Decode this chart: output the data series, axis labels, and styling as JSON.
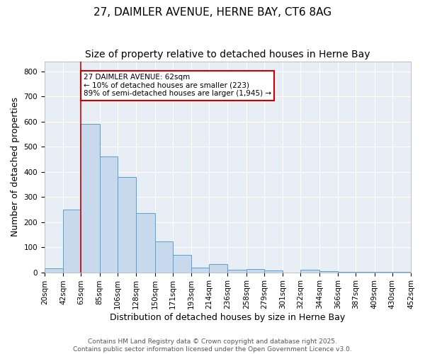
{
  "title1": "27, DAIMLER AVENUE, HERNE BAY, CT6 8AG",
  "title2": "Size of property relative to detached houses in Herne Bay",
  "xlabel": "Distribution of detached houses by size in Herne Bay",
  "ylabel": "Number of detached properties",
  "bin_edges": [
    20,
    42,
    63,
    85,
    106,
    128,
    150,
    171,
    193,
    214,
    236,
    258,
    279,
    301,
    322,
    344,
    366,
    387,
    409,
    430,
    452
  ],
  "bin_labels": [
    "20sqm",
    "42sqm",
    "63sqm",
    "85sqm",
    "106sqm",
    "128sqm",
    "150sqm",
    "171sqm",
    "193sqm",
    "214sqm",
    "236sqm",
    "258sqm",
    "279sqm",
    "301sqm",
    "322sqm",
    "344sqm",
    "366sqm",
    "387sqm",
    "409sqm",
    "430sqm",
    "452sqm"
  ],
  "values": [
    17,
    250,
    590,
    460,
    380,
    235,
    122,
    68,
    20,
    32,
    11,
    13,
    8,
    0,
    10,
    5,
    3,
    2,
    1,
    3,
    0
  ],
  "bar_color": "#c8d8ed",
  "bar_edge_color": "#5a9fd4",
  "property_line_x": 63,
  "property_line_color": "#cc0000",
  "annotation_text": "27 DAIMLER AVENUE: 62sqm\n← 10% of detached houses are smaller (223)\n89% of semi-detached houses are larger (1,945) →",
  "annotation_box_color": "white",
  "annotation_box_edge_color": "#cc0000",
  "ylim": [
    0,
    840
  ],
  "background_color": "#e8eef5",
  "grid_color": "#ffffff",
  "footer_text": "Contains HM Land Registry data © Crown copyright and database right 2025.\nContains public sector information licensed under the Open Government Licence v3.0.",
  "title_fontsize": 11,
  "subtitle_fontsize": 10,
  "label_fontsize": 9,
  "tick_fontsize": 7.5,
  "footer_fontsize": 6.5
}
